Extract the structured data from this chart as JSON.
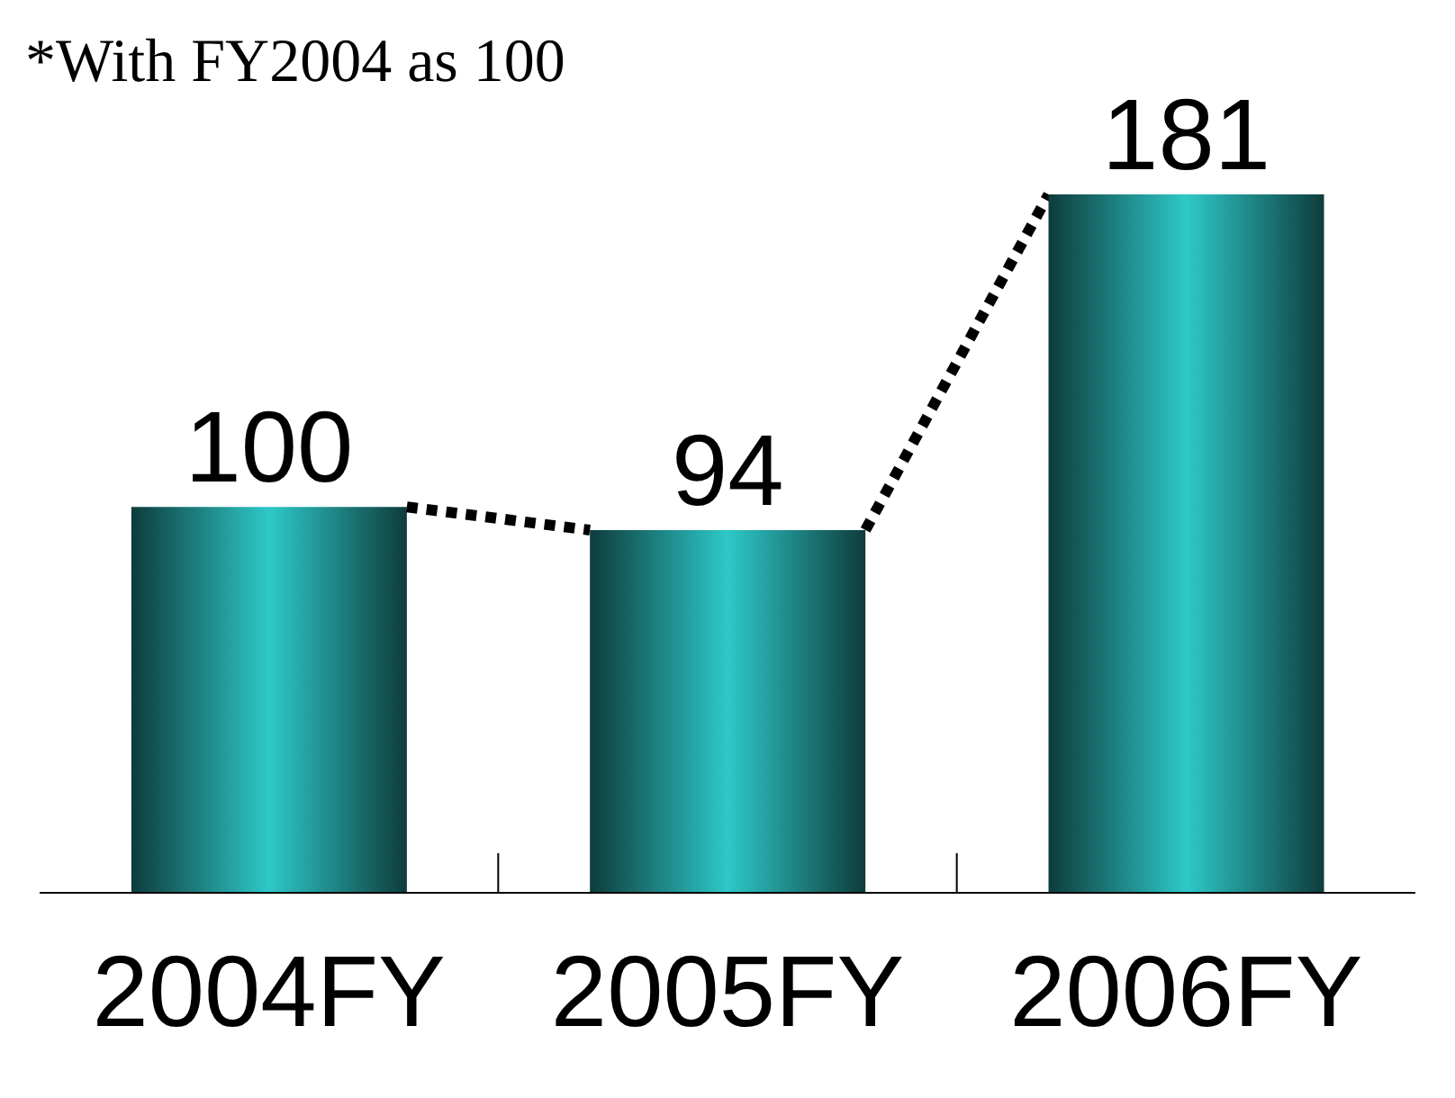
{
  "chart_data": {
    "type": "bar",
    "categories": [
      "2004FY",
      "2005FY",
      "2006FY"
    ],
    "values": [
      100,
      94,
      181
    ],
    "color": "#2ec8c8",
    "data_labels": true,
    "annotations": [
      "*With FY2004 as 100"
    ]
  }
}
